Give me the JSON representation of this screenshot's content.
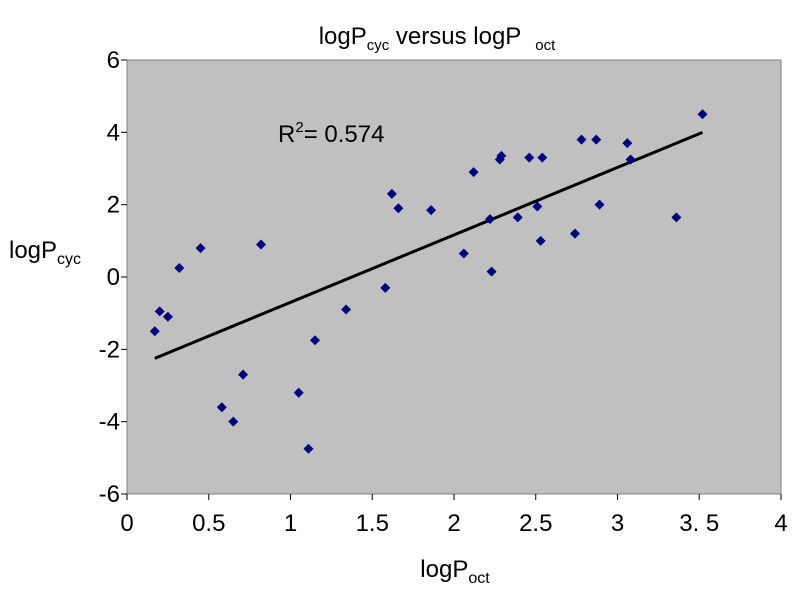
{
  "chart_data": {
    "type": "scatter",
    "title": {
      "base1": "logP",
      "sub1": "cyc",
      "middle": " versus logP",
      "sub2": "oct"
    },
    "xlabel": {
      "base": "logP",
      "sub": "oct"
    },
    "ylabel": {
      "base": "logP",
      "sub": "cyc"
    },
    "annotation": {
      "base": "R",
      "sup": "2",
      "rest": "= 0.574"
    },
    "xlim": [
      0,
      4
    ],
    "ylim": [
      -6,
      6
    ],
    "x_ticks": [
      "0",
      "0.5",
      "1",
      "1.5",
      "2",
      "2.5",
      "3",
      "3. 5",
      "4"
    ],
    "x_tick_values": [
      0,
      0.5,
      1,
      1.5,
      2,
      2.5,
      3,
      3.5,
      4
    ],
    "y_ticks": [
      "6",
      "4",
      "2",
      "0",
      "-2",
      "-4",
      "-6"
    ],
    "y_tick_values": [
      6,
      4,
      2,
      0,
      -2,
      -4,
      -6
    ],
    "grid": false,
    "plot_background": "#c0c0c0",
    "marker_color": "#000080",
    "line_color": "#000000",
    "points": [
      [
        0.17,
        -1.5
      ],
      [
        0.2,
        -0.95
      ],
      [
        0.25,
        -1.1
      ],
      [
        0.32,
        0.25
      ],
      [
        0.45,
        0.8
      ],
      [
        0.58,
        -3.6
      ],
      [
        0.65,
        -4.0
      ],
      [
        0.71,
        -2.7
      ],
      [
        0.82,
        0.9
      ],
      [
        1.05,
        -3.2
      ],
      [
        1.11,
        -4.75
      ],
      [
        1.15,
        -1.75
      ],
      [
        1.34,
        -0.9
      ],
      [
        1.58,
        -0.3
      ],
      [
        1.62,
        2.3
      ],
      [
        1.66,
        1.9
      ],
      [
        1.86,
        1.85
      ],
      [
        2.06,
        0.65
      ],
      [
        2.12,
        2.9
      ],
      [
        2.22,
        1.6
      ],
      [
        2.23,
        0.15
      ],
      [
        2.28,
        3.25
      ],
      [
        2.29,
        3.35
      ],
      [
        2.39,
        1.65
      ],
      [
        2.46,
        3.3
      ],
      [
        2.51,
        1.95
      ],
      [
        2.53,
        1.0
      ],
      [
        2.54,
        3.3
      ],
      [
        2.74,
        1.2
      ],
      [
        2.78,
        3.8
      ],
      [
        2.87,
        3.8
      ],
      [
        2.89,
        2.0
      ],
      [
        3.06,
        3.7
      ],
      [
        3.08,
        3.25
      ],
      [
        3.36,
        1.65
      ],
      [
        3.52,
        4.5
      ]
    ],
    "trendline": {
      "x": [
        0.17,
        3.52
      ],
      "y": [
        -2.25,
        4.0
      ]
    }
  }
}
